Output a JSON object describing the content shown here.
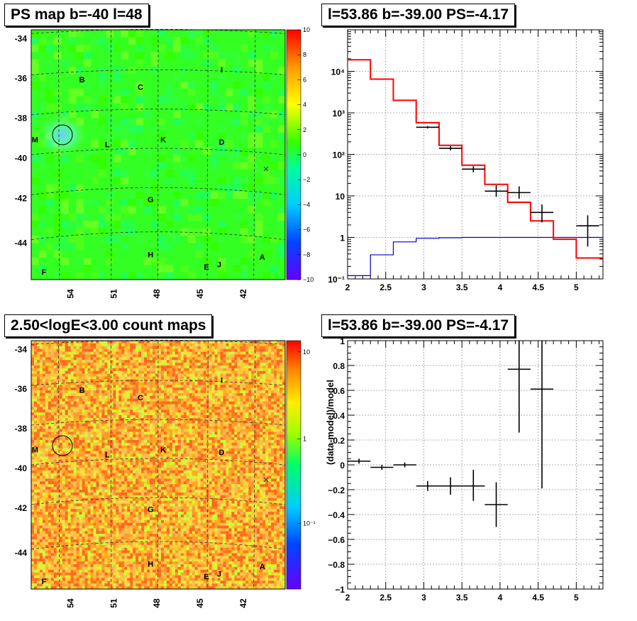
{
  "titles": {
    "tl": "PS map b=-40 l=48",
    "tr": "l=53.86 b=-39.00 PS=-4.17",
    "bl": "2.50<logE<3.00 count maps",
    "br": "l=53.86 b=-39.00 PS=-4.17"
  },
  "map_y_ticks": [
    "-34",
    "-36",
    "-38",
    "-40",
    "-42",
    "-44"
  ],
  "map_x_ticks": [
    "54",
    "51",
    "48",
    "45",
    "42"
  ],
  "source_labels": [
    {
      "id": "B",
      "fx": 0.2,
      "fy": 0.21
    },
    {
      "id": "C",
      "fx": 0.43,
      "fy": 0.24
    },
    {
      "id": "I",
      "fx": 0.75,
      "fy": 0.17
    },
    {
      "id": "M",
      "fx": 0.015,
      "fy": 0.45
    },
    {
      "id": "L",
      "fx": 0.3,
      "fy": 0.47
    },
    {
      "id": "K",
      "fx": 0.52,
      "fy": 0.45
    },
    {
      "id": "D",
      "fx": 0.75,
      "fy": 0.46
    },
    {
      "id": "G",
      "fx": 0.47,
      "fy": 0.69
    },
    {
      "id": "H",
      "fx": 0.47,
      "fy": 0.91
    },
    {
      "id": "A",
      "fx": 0.91,
      "fy": 0.92
    },
    {
      "id": "F",
      "fx": 0.05,
      "fy": 0.98
    },
    {
      "id": "E",
      "fx": 0.69,
      "fy": 0.96
    },
    {
      "id": "J",
      "fx": 0.74,
      "fy": 0.95
    }
  ],
  "tl_colorbar_ticks": [
    "10",
    "8",
    "6",
    "4",
    "2",
    "0",
    "−2",
    "−4",
    "−6",
    "−8",
    "−10"
  ],
  "bl_colorbar_ticks": [
    "10",
    "1",
    "10⁻¹"
  ],
  "chart_data": [
    {
      "type": "line",
      "panel": "spectrum",
      "xlim": [
        2,
        5.35
      ],
      "ylim": [
        0.1,
        100000
      ],
      "yscale": "log",
      "grid": true,
      "x_ticks": [
        "2",
        "2.5",
        "3",
        "3.5",
        "4",
        "4.5",
        "5"
      ],
      "y_ticks": [
        {
          "v": 0.1,
          "label": "10⁻¹"
        },
        {
          "v": 1,
          "label": "1"
        },
        {
          "v": 10,
          "label": "10"
        },
        {
          "v": 100,
          "label": "10²"
        },
        {
          "v": 1000,
          "label": "10³"
        },
        {
          "v": 10000,
          "label": "10⁴"
        }
      ],
      "model_color": "#ff0000",
      "model_edges": [
        2.0,
        2.3,
        2.6,
        2.9,
        3.2,
        3.5,
        3.8,
        4.1,
        4.4,
        4.7,
        5.0,
        5.35
      ],
      "model_values": [
        19000,
        6500,
        2000,
        580,
        165,
        55,
        19,
        7,
        2.5,
        0.9,
        0.32
      ],
      "bkg_color": "#0000cc",
      "bkg_edges": [
        2.0,
        2.3,
        2.6,
        2.9,
        3.2,
        3.5,
        3.8,
        4.1,
        4.4,
        4.7,
        5.0,
        5.35
      ],
      "bkg_values": [
        0.12,
        0.38,
        0.78,
        0.95,
        0.98,
        1.0,
        1.0,
        1.0,
        1.0,
        1.0,
        1.0
      ],
      "data_points": [
        {
          "x": 3.05,
          "xerr": 0.15,
          "y": 450,
          "lo": 420,
          "hi": 480
        },
        {
          "x": 3.35,
          "xerr": 0.15,
          "y": 140,
          "lo": 125,
          "hi": 158
        },
        {
          "x": 3.65,
          "xerr": 0.15,
          "y": 44,
          "lo": 37,
          "hi": 52
        },
        {
          "x": 3.95,
          "xerr": 0.15,
          "y": 13,
          "lo": 9.5,
          "hi": 18
        },
        {
          "x": 4.25,
          "xerr": 0.15,
          "y": 12,
          "lo": 8.5,
          "hi": 17
        },
        {
          "x": 4.55,
          "xerr": 0.15,
          "y": 4,
          "lo": 2.3,
          "hi": 6.2
        },
        {
          "x": 5.15,
          "xerr": 0.15,
          "y": 1.9,
          "lo": 0.6,
          "hi": 3.4
        }
      ]
    },
    {
      "type": "scatter",
      "panel": "residuals",
      "xlim": [
        2,
        5.35
      ],
      "ylim": [
        -1,
        1
      ],
      "ylabel": "(data-model)/model",
      "grid": true,
      "x_ticks": [
        "2",
        "2.5",
        "3",
        "3.5",
        "4",
        "4.5",
        "5"
      ],
      "y_ticks": [
        "1",
        "0.8",
        "0.6",
        "0.4",
        "0.2",
        "0",
        "−0.2",
        "−0.4",
        "−0.6",
        "−0.8",
        "−1"
      ],
      "data_points": [
        {
          "x": 2.15,
          "xerr": 0.15,
          "y": 0.03,
          "lo": 0.01,
          "hi": 0.05
        },
        {
          "x": 2.45,
          "xerr": 0.15,
          "y": -0.02,
          "lo": -0.04,
          "hi": 0.0
        },
        {
          "x": 2.75,
          "xerr": 0.15,
          "y": 0.0,
          "lo": -0.02,
          "hi": 0.02
        },
        {
          "x": 3.05,
          "xerr": 0.15,
          "y": -0.17,
          "lo": -0.21,
          "hi": -0.13
        },
        {
          "x": 3.35,
          "xerr": 0.15,
          "y": -0.17,
          "lo": -0.24,
          "hi": -0.1
        },
        {
          "x": 3.65,
          "xerr": 0.15,
          "y": -0.17,
          "lo": -0.29,
          "hi": -0.04
        },
        {
          "x": 3.95,
          "xerr": 0.15,
          "y": -0.32,
          "lo": -0.5,
          "hi": -0.14
        },
        {
          "x": 4.25,
          "xerr": 0.15,
          "y": 0.77,
          "lo": 0.26,
          "hi": 1.0
        },
        {
          "x": 4.55,
          "xerr": 0.15,
          "y": 0.61,
          "lo": -0.19,
          "hi": 1.0
        }
      ]
    }
  ]
}
